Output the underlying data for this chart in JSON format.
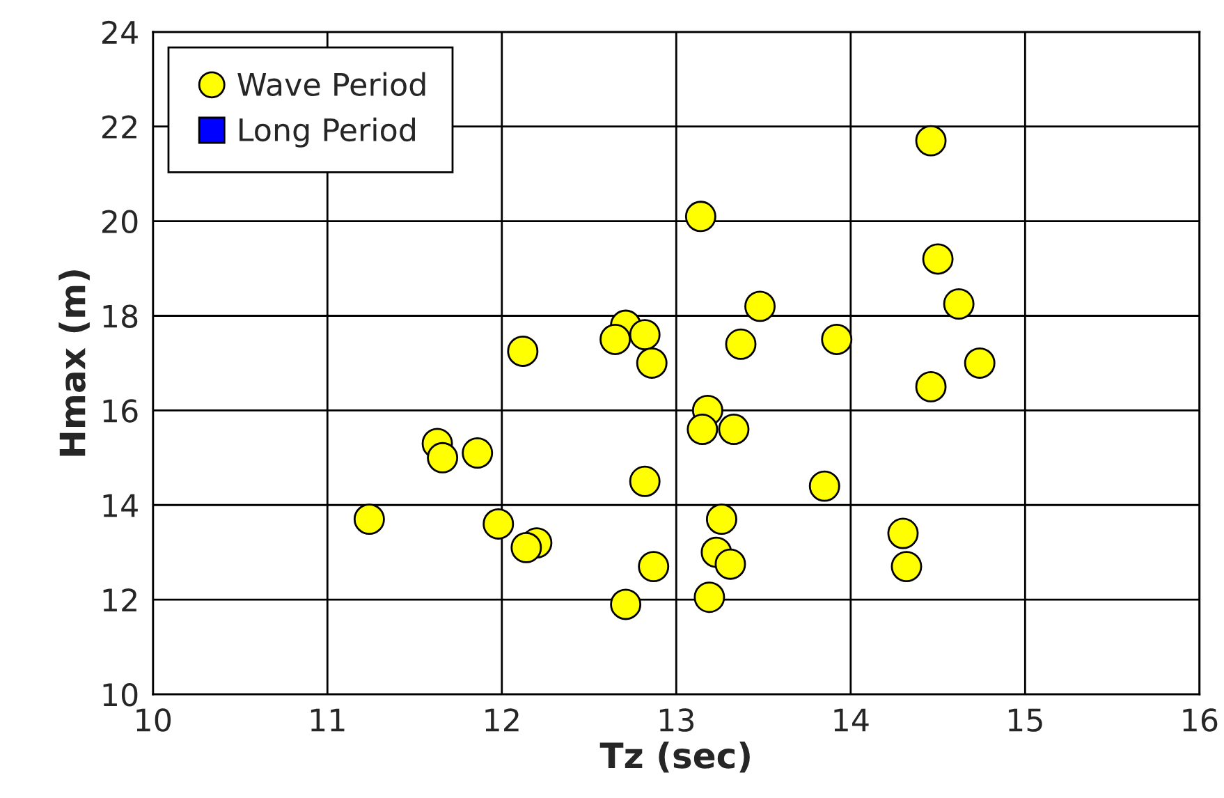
{
  "chart_data": {
    "type": "scatter",
    "xlabel": "Tz (sec)",
    "ylabel": "Hmax (m)",
    "xlim": [
      10,
      16
    ],
    "xticks": [
      10,
      11,
      12,
      13,
      14,
      15,
      16
    ],
    "ylim": [
      10,
      24
    ],
    "yticks": [
      10,
      12,
      14,
      16,
      18,
      20,
      22,
      24
    ],
    "grid": true,
    "legend": "top left",
    "series": [
      {
        "name": "Wave Period",
        "color": "#ffff00",
        "marker": "circle",
        "x": [
          14.46,
          13.14,
          14.5,
          13.48,
          14.62,
          12.71,
          12.82,
          12.65,
          13.37,
          13.92,
          12.12,
          12.86,
          14.74,
          14.46,
          13.18,
          13.15,
          13.33,
          11.63,
          11.66,
          11.86,
          12.82,
          13.85,
          11.24,
          11.98,
          13.26,
          14.3,
          12.2,
          12.14,
          13.23,
          12.87,
          13.31,
          14.32,
          12.71,
          13.19
        ],
        "values": [
          21.7,
          20.1,
          19.2,
          18.2,
          18.25,
          17.8,
          17.6,
          17.5,
          17.4,
          17.5,
          17.25,
          17.0,
          17.0,
          16.5,
          16.0,
          15.6,
          15.6,
          15.3,
          15.0,
          15.1,
          14.5,
          14.4,
          13.7,
          13.6,
          13.7,
          13.4,
          13.2,
          13.1,
          13.0,
          12.7,
          12.75,
          12.7,
          11.9,
          12.05
        ]
      },
      {
        "name": "Long Period",
        "color": "#0000ff",
        "marker": "square"
      }
    ]
  }
}
